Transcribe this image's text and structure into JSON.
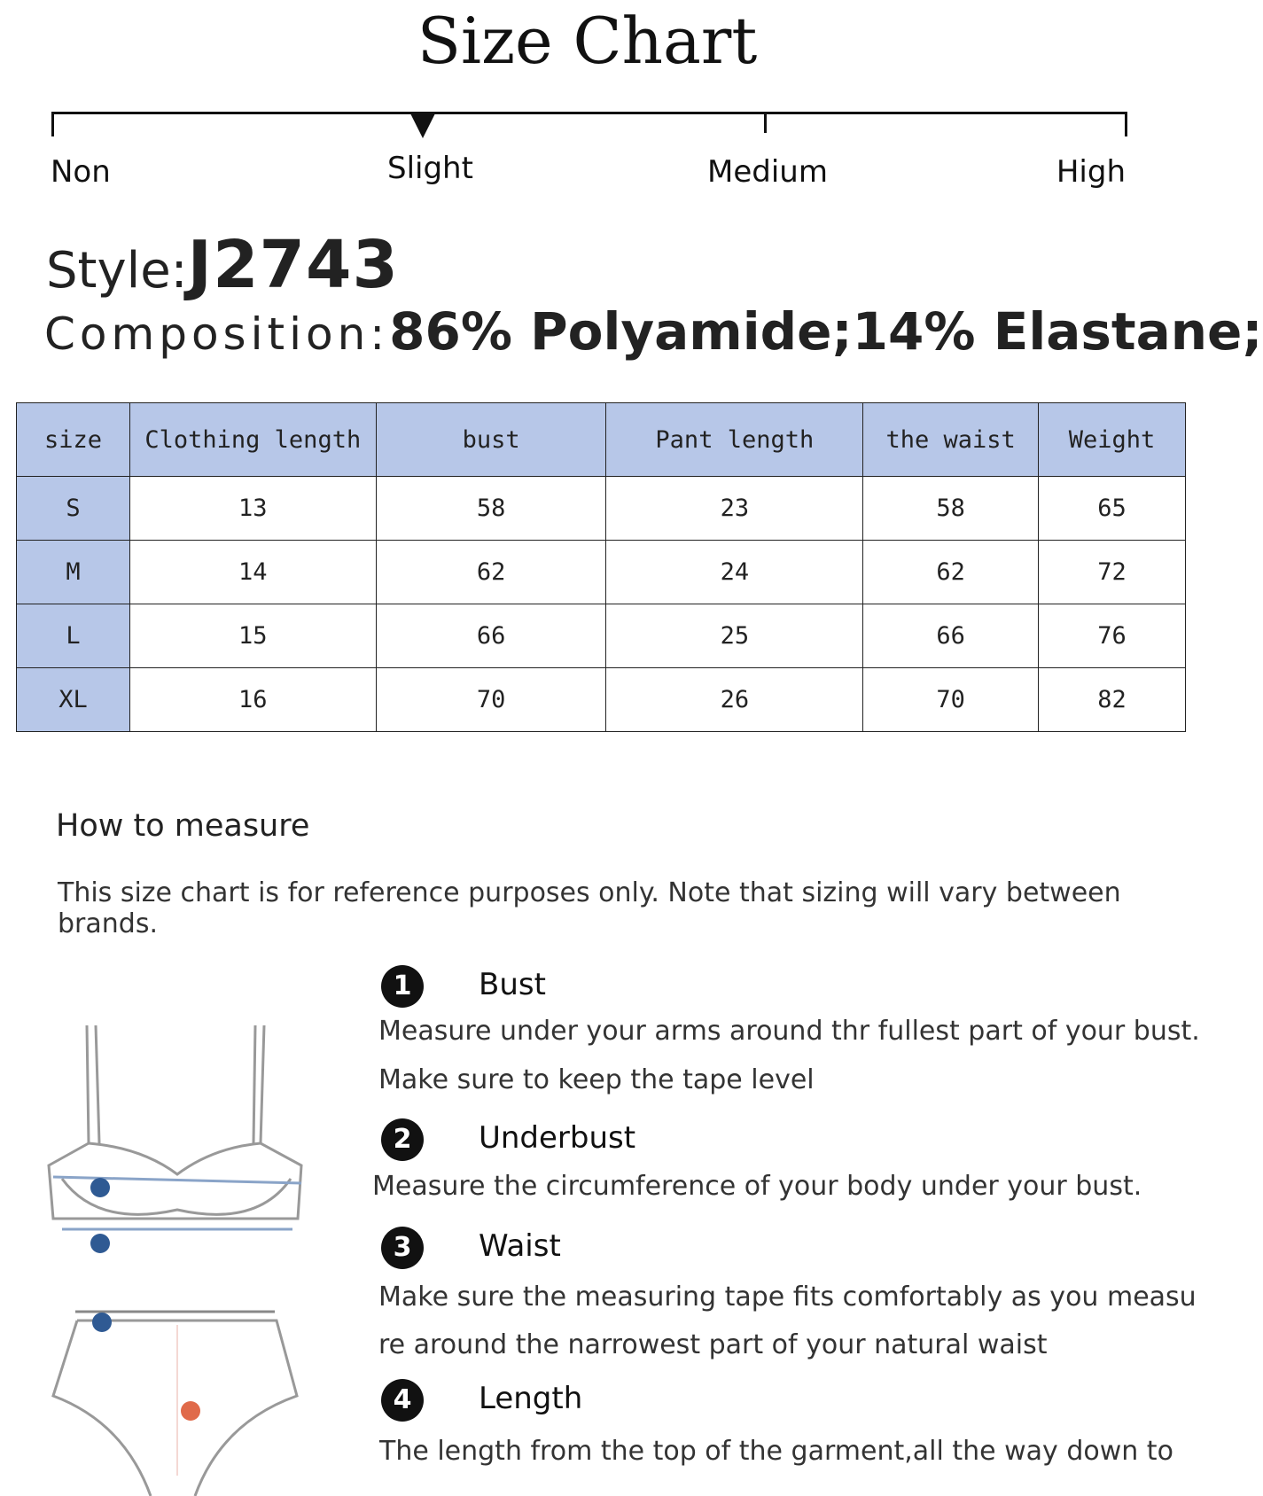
{
  "title": "Size Chart",
  "stretch_scale": {
    "labels": [
      "Non",
      "Slight",
      "Medium",
      "High"
    ],
    "selected": "Slight"
  },
  "style": {
    "label": "Style:",
    "value": "J2743"
  },
  "composition": {
    "label": "Composition:",
    "value": "86% Polyamide;14% Elastane;"
  },
  "table": {
    "headers": [
      "size",
      "Clothing length",
      "bust",
      "Pant length",
      "the waist",
      "Weight"
    ],
    "rows": [
      [
        "S",
        "13",
        "58",
        "23",
        "58",
        "65"
      ],
      [
        "M",
        "14",
        "62",
        "24",
        "62",
        "72"
      ],
      [
        "L",
        "15",
        "66",
        "25",
        "66",
        "76"
      ],
      [
        "XL",
        "16",
        "70",
        "26",
        "70",
        "82"
      ]
    ],
    "header_color": "#b7c7e8"
  },
  "how_to_measure": {
    "heading": "How to measure",
    "disclaimer": "This size chart is for reference purposes only. Note that sizing will vary between brands.",
    "items": [
      {
        "number": "1",
        "title": "Bust",
        "lines": [
          "Measure under your arms around thr fullest part of your bust.",
          "Make sure to keep the tape level"
        ]
      },
      {
        "number": "2",
        "title": "Underbust",
        "lines": [
          "Measure the circumference of your body under your bust."
        ]
      },
      {
        "number": "3",
        "title": "Waist",
        "lines": [
          "Make sure the measuring tape fits comfortably as you measu",
          "re around the narrowest part of your natural waist"
        ]
      },
      {
        "number": "4",
        "title": "Length",
        "lines": [
          "The length from the top of the garment,all the way down to"
        ]
      }
    ]
  }
}
